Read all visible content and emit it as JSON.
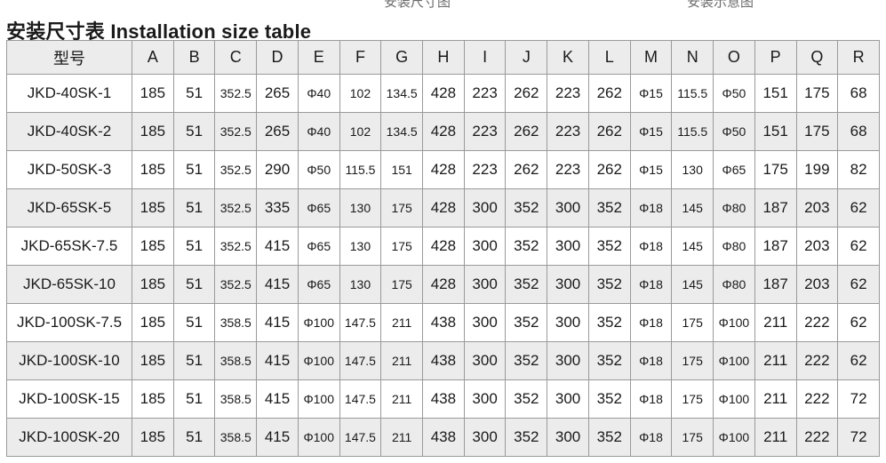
{
  "page": {
    "title": "安装尺寸表 Installation size table"
  },
  "top_labels": {
    "left": "安装尺寸图",
    "right": "安装示意图"
  },
  "colors": {
    "header_bg": "#ececec",
    "stripe_bg": "#ececec",
    "border": "#9a9a9a",
    "text": "#1a1a1a"
  },
  "table": {
    "columns": [
      "型号",
      "A",
      "B",
      "C",
      "D",
      "E",
      "F",
      "G",
      "H",
      "I",
      "J",
      "K",
      "L",
      "M",
      "N",
      "O",
      "P",
      "Q",
      "R"
    ],
    "rows": [
      [
        "JKD-40SK-1",
        "185",
        "51",
        "352.5",
        "265",
        "Φ40",
        "102",
        "134.5",
        "428",
        "223",
        "262",
        "223",
        "262",
        "Φ15",
        "115.5",
        "Φ50",
        "151",
        "175",
        "68"
      ],
      [
        "JKD-40SK-2",
        "185",
        "51",
        "352.5",
        "265",
        "Φ40",
        "102",
        "134.5",
        "428",
        "223",
        "262",
        "223",
        "262",
        "Φ15",
        "115.5",
        "Φ50",
        "151",
        "175",
        "68"
      ],
      [
        "JKD-50SK-3",
        "185",
        "51",
        "352.5",
        "290",
        "Φ50",
        "115.5",
        "151",
        "428",
        "223",
        "262",
        "223",
        "262",
        "Φ15",
        "130",
        "Φ65",
        "175",
        "199",
        "82"
      ],
      [
        "JKD-65SK-5",
        "185",
        "51",
        "352.5",
        "335",
        "Φ65",
        "130",
        "175",
        "428",
        "300",
        "352",
        "300",
        "352",
        "Φ18",
        "145",
        "Φ80",
        "187",
        "203",
        "62"
      ],
      [
        "JKD-65SK-7.5",
        "185",
        "51",
        "352.5",
        "415",
        "Φ65",
        "130",
        "175",
        "428",
        "300",
        "352",
        "300",
        "352",
        "Φ18",
        "145",
        "Φ80",
        "187",
        "203",
        "62"
      ],
      [
        "JKD-65SK-10",
        "185",
        "51",
        "352.5",
        "415",
        "Φ65",
        "130",
        "175",
        "428",
        "300",
        "352",
        "300",
        "352",
        "Φ18",
        "145",
        "Φ80",
        "187",
        "203",
        "62"
      ],
      [
        "JKD-100SK-7.5",
        "185",
        "51",
        "358.5",
        "415",
        "Φ100",
        "147.5",
        "211",
        "438",
        "300",
        "352",
        "300",
        "352",
        "Φ18",
        "175",
        "Φ100",
        "211",
        "222",
        "62"
      ],
      [
        "JKD-100SK-10",
        "185",
        "51",
        "358.5",
        "415",
        "Φ100",
        "147.5",
        "211",
        "438",
        "300",
        "352",
        "300",
        "352",
        "Φ18",
        "175",
        "Φ100",
        "211",
        "222",
        "62"
      ],
      [
        "JKD-100SK-15",
        "185",
        "51",
        "358.5",
        "415",
        "Φ100",
        "147.5",
        "211",
        "438",
        "300",
        "352",
        "300",
        "352",
        "Φ18",
        "175",
        "Φ100",
        "211",
        "222",
        "72"
      ],
      [
        "JKD-100SK-20",
        "185",
        "51",
        "358.5",
        "415",
        "Φ100",
        "147.5",
        "211",
        "438",
        "300",
        "352",
        "300",
        "352",
        "Φ18",
        "175",
        "Φ100",
        "211",
        "222",
        "72"
      ]
    ]
  }
}
